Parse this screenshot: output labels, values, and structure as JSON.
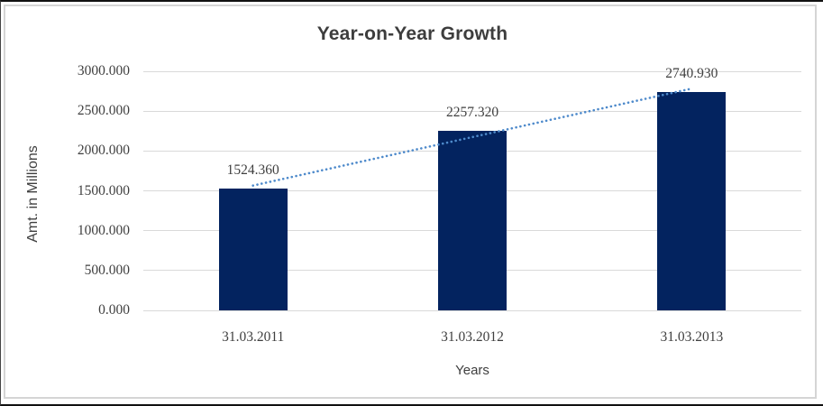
{
  "chart_data": {
    "type": "bar",
    "title": "Year-on-Year Growth",
    "xlabel": "Years",
    "ylabel": "Amt. in Millions",
    "categories": [
      "31.03.2011",
      "31.03.2012",
      "31.03.2013"
    ],
    "values": [
      1524.36,
      2257.32,
      2740.93
    ],
    "data_labels": [
      "1524.360",
      "2257.320",
      "2740.930"
    ],
    "ytick_values": [
      0,
      500,
      1000,
      1500,
      2000,
      2500,
      3000
    ],
    "ytick_labels": [
      "0.000",
      "500.000",
      "1000.000",
      "1500.000",
      "2000.000",
      "2500.000",
      "3000.000"
    ],
    "ylim": [
      0,
      3000
    ],
    "grid": true,
    "legend": "none",
    "trendline": {
      "type": "linear",
      "style": "dotted"
    },
    "colors": {
      "bar": "#03235F",
      "trendline": "#4E8ACB",
      "gridline": "#D9D9D9",
      "text": "#3F3F3F",
      "title_text": "#3D3D3D",
      "frame_border": "#D5D5D5",
      "background": "#FFFFFF"
    }
  }
}
